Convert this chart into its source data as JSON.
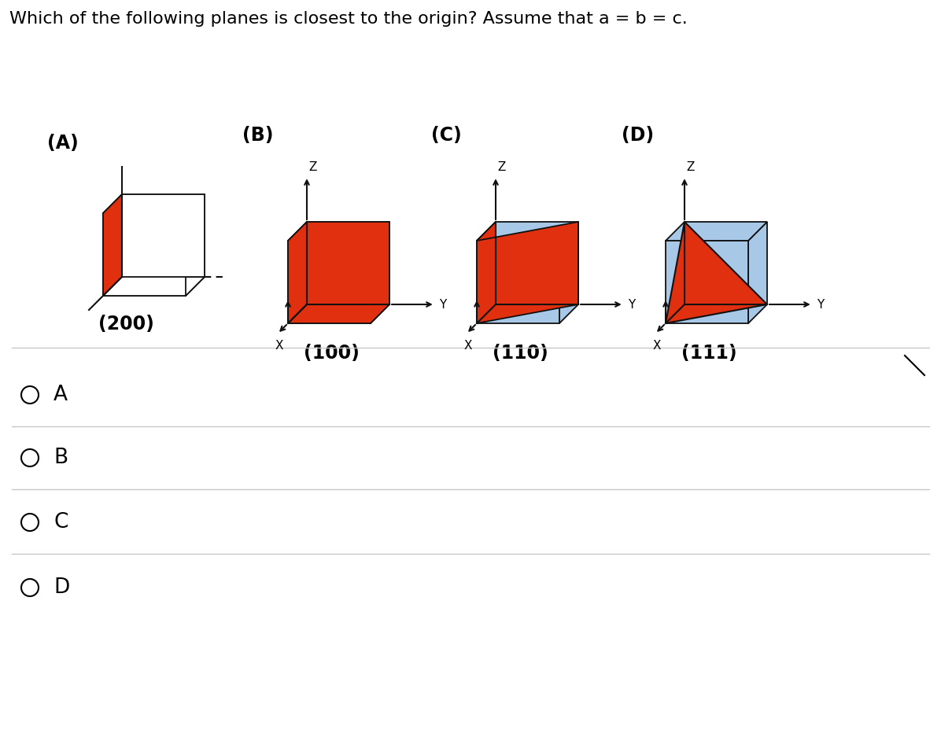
{
  "title": "Which of the following planes is closest to the origin? Assume that a = b = c.",
  "title_fontsize": 16,
  "bg_color": "#ffffff",
  "cube_color_red": "#e03010",
  "cube_color_blue": "#a8c8e8",
  "cube_edge_color": "#111111",
  "labels": [
    "(A)",
    "(B)",
    "(C)",
    "(D)"
  ],
  "plane_labels": [
    "(200)",
    "(100)",
    "(110)",
    "(111)"
  ],
  "options": [
    "A",
    "B",
    "C",
    "D"
  ],
  "divider_color": "#c8c8c8",
  "option_fontsize": 19,
  "label_fontsize": 17,
  "plane_label_fontsize": 17
}
